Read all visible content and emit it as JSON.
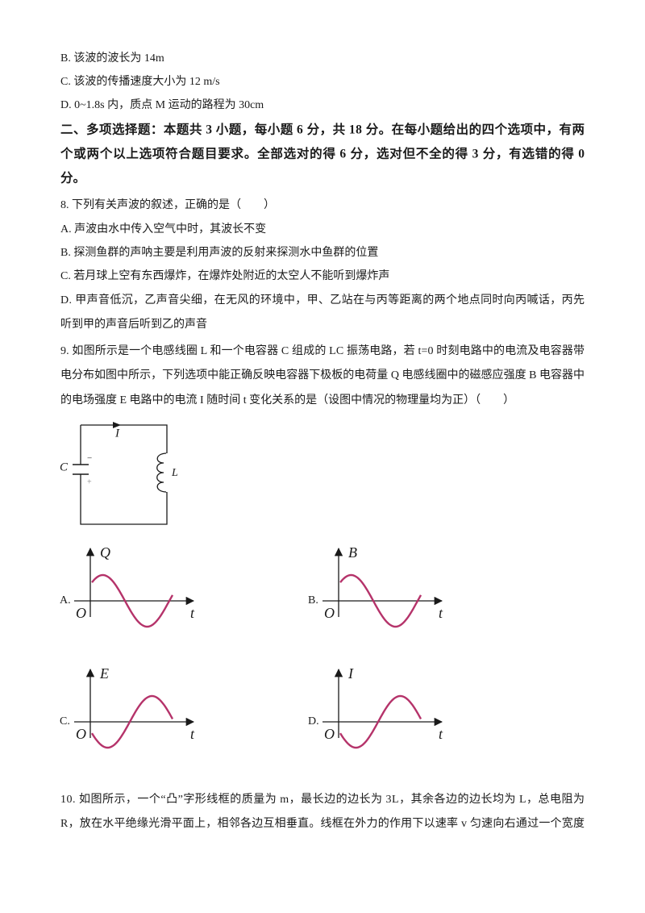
{
  "q7_options": [
    "B. 该波的波长为 14m",
    "C. 该波的传播速度大小为 12 m/s",
    "D. 0~1.8s 内，质点 M 运动的路程为 30cm"
  ],
  "section": [
    "二、多项选择题：本题共 3 小题，每小题 6 分，共 18 分。在每小题给出的四个选项中，有两",
    "个或两个以上选项符合题目要求。全部选对的得 6 分，选对但不全的得 3 分，有选错的得 0",
    "分。"
  ],
  "q8": [
    "8. 下列有关声波的叙述，正确的是（　　）",
    "A. 声波由水中传入空气中时，其波长不变",
    "B. 探测鱼群的声呐主要是利用声波的反射来探测水中鱼群的位置",
    "C. 若月球上空有东西爆炸，在爆炸处附近的太空人不能听到爆炸声",
    "D. 甲声音低沉，乙声音尖细，在无风的环境中，甲、乙站在与丙等距离的两个地点同时向丙喊话，丙先",
    "听到甲的声音后听到乙的声音"
  ],
  "q9": {
    "stem": [
      "9. 如图所示是一个电感线圈 L 和一个电容器 C 组成的 LC 振荡电路，若 t=0 时刻电路中的电流及电容器带",
      "电分布如图中所示，下列选项中能正确反映电容器下极板的电荷量 Q 电感线圈中的磁感应强度 B 电容器中",
      "的电场强度 E 电路中的电流 I 随时间 t 变化关系的是（设图中情况的物理量均为正）（　　）"
    ],
    "circuit": {
      "current": "I",
      "capacitor": "C",
      "inductor": "L",
      "minus": "−",
      "plus": "+"
    },
    "graphs": [
      {
        "option": "A.",
        "y_label": "Q",
        "origin": "O",
        "x_label": "t"
      },
      {
        "option": "B.",
        "y_label": "B",
        "origin": "O",
        "x_label": "t"
      },
      {
        "option": "C.",
        "y_label": "E",
        "origin": "O",
        "x_label": "t"
      },
      {
        "option": "D.",
        "y_label": "I",
        "origin": "O",
        "x_label": "t"
      }
    ]
  },
  "q10": [
    "10. 如图所示，一个“凸”字形线框的质量为 m，最长边的边长为 3L，其余各边的边长均为 L，总电阻为",
    "R，放在水平绝缘光滑平面上，相邻各边互相垂直。线框在外力的作用下以速率 v 匀速向右通过一个宽度"
  ]
}
